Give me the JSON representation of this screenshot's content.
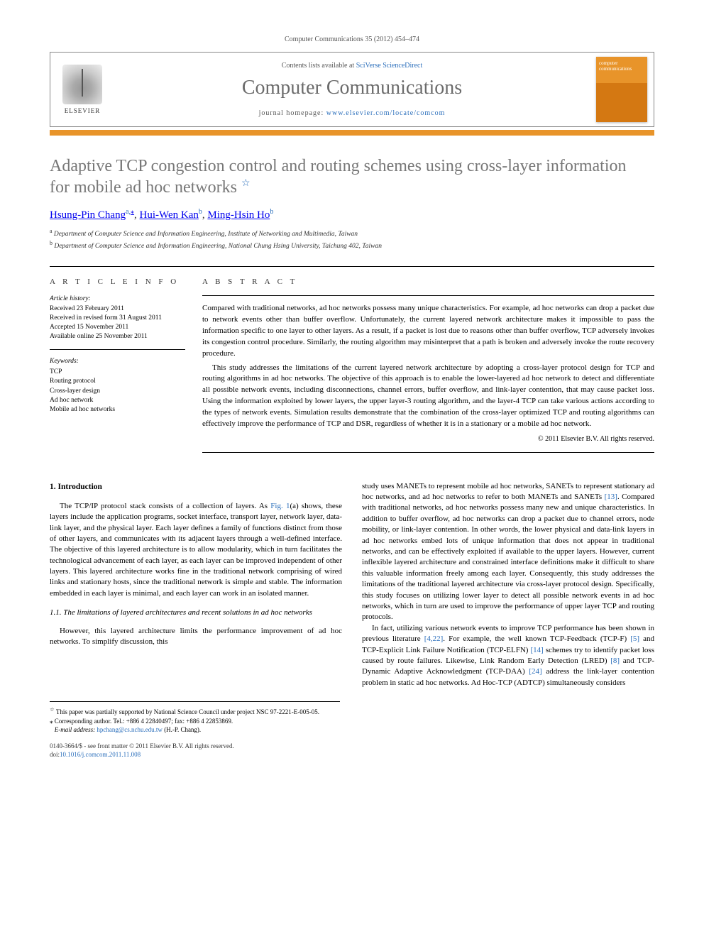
{
  "citation": "Computer Communications 35 (2012) 454–474",
  "header": {
    "contents_prefix": "Contents lists available at ",
    "contents_link": "SciVerse ScienceDirect",
    "journal": "Computer Communications",
    "homepage_prefix": "journal homepage: ",
    "homepage_url": "www.elsevier.com/locate/comcom",
    "publisher_label": "ELSEVIER",
    "cover_text": "computer communications"
  },
  "orange_color": "#e8942a",
  "title_line1": "Adaptive TCP congestion control and routing schemes using cross-layer information",
  "title_line2": "for mobile ad hoc networks",
  "title_footnote_mark": "☆",
  "authors_html": {
    "a1_name": "Hsung-Pin Chang",
    "a1_sup": "a,",
    "a1_corr": "⁎",
    "sep": ", ",
    "a2_name": "Hui-Wen Kan",
    "a2_sup": "b",
    "a3_name": "Ming-Hsin Ho",
    "a3_sup": "b"
  },
  "affiliations": {
    "a": "Department of Computer Science and Information Engineering, Institute of Networking and Multimedia, Taiwan",
    "b": "Department of Computer Science and Information Engineering, National Chung Hsing University, Taichung 402, Taiwan"
  },
  "info": {
    "heading": "A R T I C L E   I N F O",
    "history_label": "Article history:",
    "received": "Received 23 February 2011",
    "revised": "Received in revised form 31 August 2011",
    "accepted": "Accepted 15 November 2011",
    "online": "Available online 25 November 2011",
    "keywords_label": "Keywords:",
    "keywords": [
      "TCP",
      "Routing protocol",
      "Cross-layer design",
      "Ad hoc network",
      "Mobile ad hoc networks"
    ]
  },
  "abstract": {
    "heading": "A B S T R A C T",
    "p1": "Compared with traditional networks, ad hoc networks possess many unique characteristics. For example, ad hoc networks can drop a packet due to network events other than buffer overflow. Unfortunately, the current layered network architecture makes it impossible to pass the information specific to one layer to other layers. As a result, if a packet is lost due to reasons other than buffer overflow, TCP adversely invokes its congestion control procedure. Similarly, the routing algorithm may misinterpret that a path is broken and adversely invoke the route recovery procedure.",
    "p2": "This study addresses the limitations of the current layered network architecture by adopting a cross-layer protocol design for TCP and routing algorithms in ad hoc networks. The objective of this approach is to enable the lower-layered ad hoc network to detect and differentiate all possible network events, including disconnections, channel errors, buffer overflow, and link-layer contention, that may cause packet loss. Using the information exploited by lower layers, the upper layer-3 routing algorithm, and the layer-4 TCP can take various actions according to the types of network events. Simulation results demonstrate that the combination of the cross-layer optimized TCP and routing algorithms can effectively improve the performance of TCP and DSR, regardless of whether it is in a stationary or a mobile ad hoc network.",
    "copyright": "© 2011 Elsevier B.V. All rights reserved."
  },
  "body": {
    "section1_heading": "1. Introduction",
    "col1_p1a": "The TCP/IP protocol stack consists of a collection of layers. As ",
    "col1_fig1": "Fig. 1",
    "col1_p1b": "(a) shows, these layers include the application programs, socket interface, transport layer, network layer, data-link layer, and the physical layer. Each layer defines a family of functions distinct from those of other layers, and communicates with its adjacent layers through a well-defined interface. The objective of this layered architecture is to allow modularity, which in turn facilitates the technological advancement of each layer, as each layer can be improved independent of other layers. This layered architecture works fine in the traditional network comprising of wired links and stationary hosts, since the traditional network is simple and stable. The information embedded in each layer is minimal, and each layer can work in an isolated manner.",
    "sub11_heading": "1.1. The limitations of layered architectures and recent solutions in ad hoc networks",
    "col1_p2": "However, this layered architecture limits the performance improvement of ad hoc networks. To simplify discussion, this",
    "col2_p1a": "study uses MANETs to represent mobile ad hoc networks, SANETs to represent stationary ad hoc networks, and ad hoc networks to refer to both MANETs and SANETs ",
    "ref13": "[13]",
    "col2_p1b": ". Compared with traditional networks, ad hoc networks possess many new and unique characteristics. In addition to buffer overflow, ad hoc networks can drop a packet due to channel errors, node mobility, or link-layer contention. In other words, the lower physical and data-link layers in ad hoc networks embed lots of unique information that does not appear in traditional networks, and can be effectively exploited if available to the upper layers. However, current inflexible layered architecture and constrained interface definitions make it difficult to share this valuable information freely among each layer. Consequently, this study addresses the limitations of the traditional layered architecture via cross-layer protocol design. Specifically, this study focuses on utilizing lower layer to detect all possible network events in ad hoc networks, which in turn are used to improve the performance of upper layer TCP and routing protocols.",
    "col2_p2a": "In fact, utilizing various network events to improve TCP performance has been shown in previous literature ",
    "ref4_22": "[4,22]",
    "col2_p2b": ". For example, the well known TCP-Feedback (TCP-F) ",
    "ref5": "[5]",
    "col2_p2c": " and TCP-Explicit Link Failure Notification (TCP-ELFN) ",
    "ref14": "[14]",
    "col2_p2d": " schemes try to identify packet loss caused by route failures. Likewise, Link Random Early Detection (LRED) ",
    "ref8": "[8]",
    "col2_p2e": " and TCP-Dynamic Adaptive Acknowledgment (TCP-DAA) ",
    "ref24": "[24]",
    "col2_p2f": " address the link-layer contention problem in static ad hoc networks. Ad Hoc-TCP (ADTCP) simultaneously considers"
  },
  "footnotes": {
    "star": "This paper was partially supported by National Science Council under project NSC 97-2221-E-005-05.",
    "corr_label": "⁎ Corresponding author. Tel.: +886 4 22840497; fax: +886 4 22853869.",
    "email_label": "E-mail address: ",
    "email": "hpchang@cs.nchu.edu.tw",
    "email_suffix": " (H.-P. Chang)."
  },
  "footer": {
    "issn_line": "0140-3664/$ - see front matter © 2011 Elsevier B.V. All rights reserved.",
    "doi_prefix": "doi:",
    "doi": "10.1016/j.comcom.2011.11.008"
  }
}
